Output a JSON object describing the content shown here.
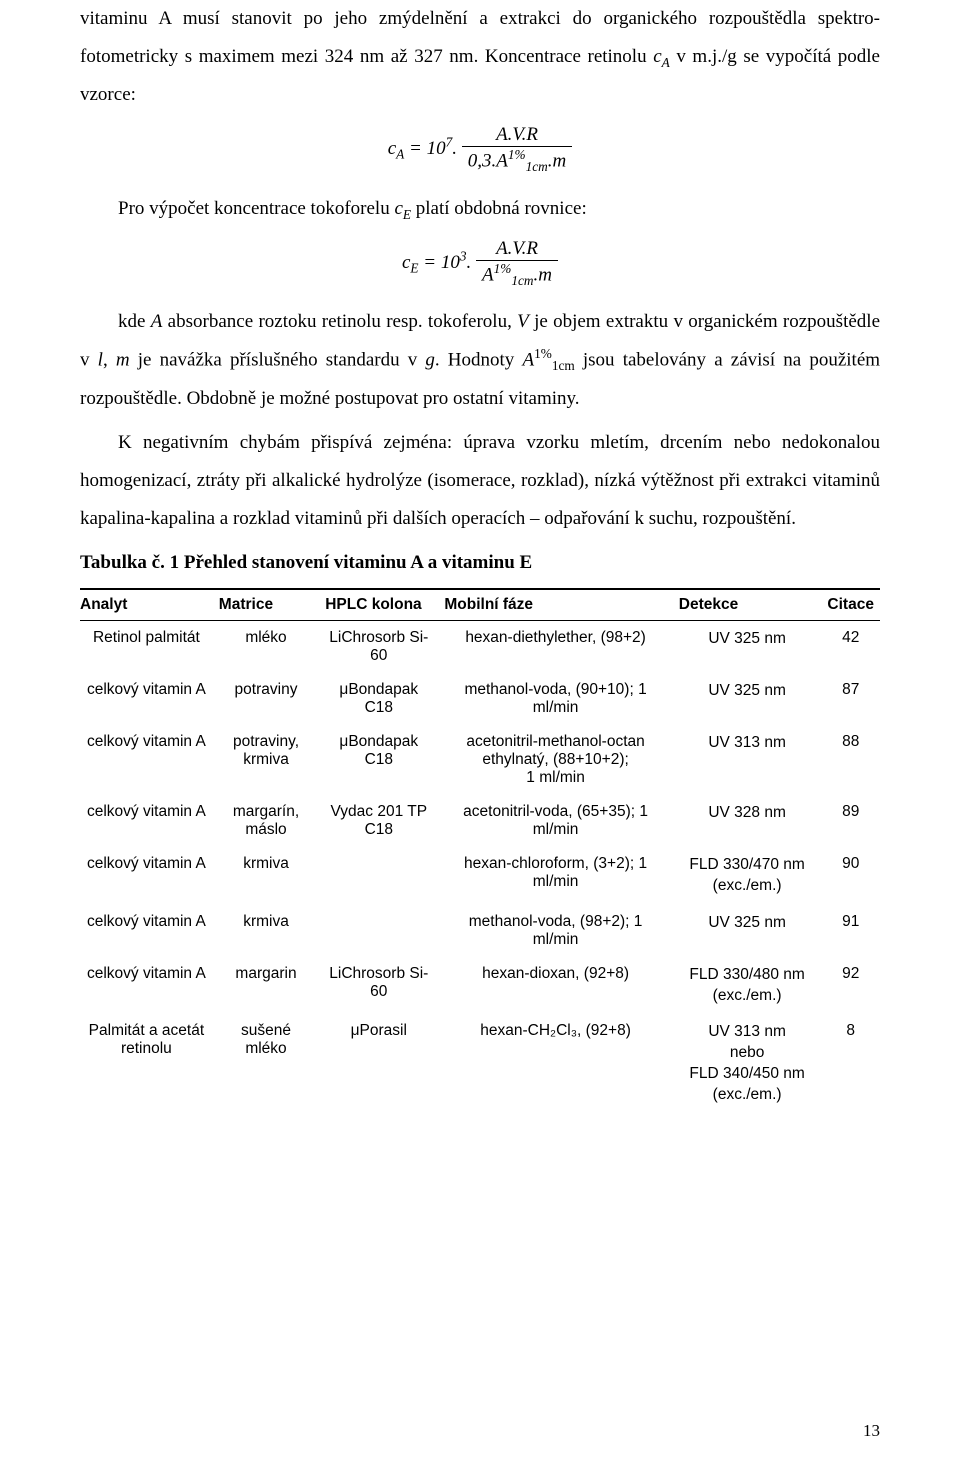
{
  "paragraphs": {
    "p1a": "vitaminu A musí stanovit po jeho zmýdelnění a extrakci do organického rozpouštědla spektro-fotometricky s maximem mezi 324 nm až 327 nm. Koncentrace retinolu ",
    "p1b": " v m.j./g se vypočítá podle vzorce:",
    "p2": "Pro výpočet koncentrace tokoforelu ",
    "p2b": " platí obdobná rovnice:",
    "p3_indent": "kde ",
    "p3a": " absorbance roztoku retinolu resp. tokoferolu, ",
    "p3b": " je objem extraktu v organickém rozpouštědle v ",
    "p3c": " je navážka příslušného standardu v ",
    "p3d": ". Hodnoty ",
    "p3e": " jsou tabelovány a závisí na použitém rozpouštědle. Obdobně je možné postupovat pro ostatní vitaminy.",
    "p4": "K negativním chybám přispívá zejména: úprava vzorku mletím, drcením nebo nedokonalou homogenizací, ztráty při alkalické hydrolýze (isomerace, rozklad), nízká výtěžnost při extrakci vitaminů kapalina-kapalina a rozklad vitaminů při dalších operacích – odpařování k suchu, rozpouštění.",
    "tableCaption": "Tabulka č. 1 Přehled stanovení vitaminu A a vitaminu E"
  },
  "inline": {
    "cA": "c",
    "A_sub": "A",
    "cE": "c",
    "E_sub": "E",
    "A": "A",
    "V": "V",
    "l": "l",
    "m": "m",
    "g": "g",
    "A1cm": "A",
    "onepct": "1%",
    "onecm": "1cm",
    "comma_m": ", "
  },
  "formula1": {
    "left": "c",
    "leftSub": "A",
    "eq": " = 10",
    "exp": "7",
    "dot": ".",
    "num": "A.V.R",
    "den_pre": "0,3.",
    "den_A": "A",
    "den_sup": "1%",
    "den_sub": "1cm",
    "den_post": ".m"
  },
  "formula2": {
    "left": "c",
    "leftSub": "E",
    "eq": " = 10",
    "exp": "3",
    "dot": ".",
    "num": "A.V.R",
    "den_A": "A",
    "den_sup": "1%",
    "den_sub": "1cm",
    "den_post": ".m"
  },
  "table": {
    "headers": [
      "Analyt",
      "Matrice",
      "HPLC kolona",
      "Mobilní fáze",
      "Detekce",
      "Citace"
    ],
    "rows": [
      {
        "analyt": "Retinol palmitát",
        "matrice": "mléko",
        "kolona": "LiChrosorb Si-60",
        "faze": "hexan-diethylether, (98+2)",
        "detekce": "UV 325 nm",
        "citace": "42"
      },
      {
        "analyt": "celkový vitamin A",
        "matrice": "potraviny",
        "kolona": "μBondapak C18",
        "faze": "methanol-voda, (90+10); 1 ml/min",
        "detekce": "UV 325 nm",
        "citace": "87"
      },
      {
        "analyt": "celkový vitamin A",
        "matrice": "potraviny, krmiva",
        "kolona": "μBondapak C18",
        "faze": "acetonitril-methanol-octan ethylnatý, (88+10+2);\n1 ml/min",
        "detekce": "UV 313 nm",
        "citace": "88"
      },
      {
        "analyt": "celkový vitamin A",
        "matrice": "margarín, máslo",
        "kolona": "Vydac 201 TP C18",
        "faze": "acetonitril-voda, (65+35); 1 ml/min",
        "detekce": "UV 328 nm",
        "citace": "89"
      },
      {
        "analyt": "celkový vitamin A",
        "matrice": "krmiva",
        "kolona": "",
        "faze": "hexan-chloroform, (3+2); 1 ml/min",
        "detekce": "FLD 330/470 nm (exc./em.)",
        "citace": "90"
      },
      {
        "analyt": "celkový vitamin A",
        "matrice": "krmiva",
        "kolona": "",
        "faze": "methanol-voda, (98+2); 1 ml/min",
        "detekce": "UV 325 nm",
        "citace": "91"
      },
      {
        "analyt": "celkový vitamin A",
        "matrice": "margarin",
        "kolona": "LiChrosorb Si-60",
        "faze": "hexan-dioxan, (92+8)",
        "detekce": "FLD 330/480 nm (exc./em.)",
        "citace": "92"
      },
      {
        "analyt": "Palmitát a acetát retinolu",
        "matrice": "sušené mléko",
        "kolona": "μPorasil",
        "faze": "hexan-CH₂Cl₃, (92+8)",
        "detekce": "UV 313 nm\nnebo\nFLD 340/450 nm (exc./em.)",
        "citace": "8"
      }
    ]
  },
  "pageNumber": "13"
}
